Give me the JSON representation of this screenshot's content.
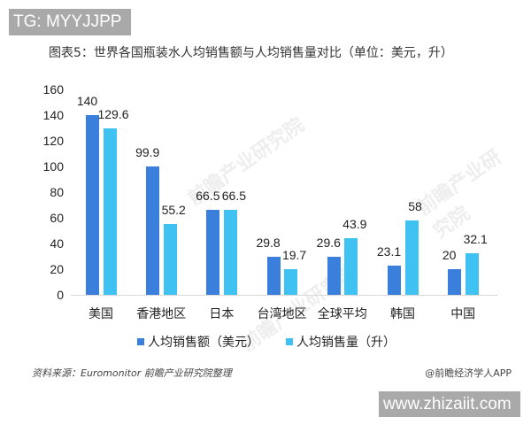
{
  "overlay": {
    "top_tag": "TG: MYYJJPP",
    "bottom_site": "www.zhizaiit.com"
  },
  "header": {
    "title": "图表5：世界各国瓶装水人均销售额与人均销售量对比（单位：美元，升）"
  },
  "footer": {
    "source": "资料来源：Euromonitor 前瞻产业研究院整理",
    "credit": "@前瞻经济学人APP"
  },
  "watermark": "前瞻产业研究院",
  "colors": {
    "series_0": "#3a7fdc",
    "series_1": "#3fc2f2"
  },
  "chart_data": {
    "type": "bar",
    "title": "图表5：世界各国瓶装水人均销售额与人均销售量对比（单位：美元，升）",
    "xlabel": "",
    "ylabel": "",
    "ylim": [
      0,
      160
    ],
    "yticks": [
      "0",
      "20",
      "40",
      "60",
      "80",
      "100",
      "120",
      "140",
      "160"
    ],
    "grid": false,
    "legend_position": "bottom",
    "categories": [
      "美国",
      "香港地区",
      "日本",
      "台湾地区",
      "全球平均",
      "韩国",
      "中国"
    ],
    "series": [
      {
        "name": "人均销售额（美元）",
        "values": [
          140,
          99.9,
          66.5,
          29.8,
          29.6,
          23.1,
          20
        ],
        "labels": [
          "140",
          "99.9",
          "66.5",
          "29.8",
          "29.6",
          "23.1",
          "20"
        ]
      },
      {
        "name": "人均销售量（升）",
        "values": [
          129.6,
          55.2,
          66.5,
          19.7,
          43.9,
          58,
          32.1
        ],
        "labels": [
          "129.6",
          "55.2",
          "66.5",
          "19.7",
          "43.9",
          "58",
          "32.1"
        ]
      }
    ]
  }
}
